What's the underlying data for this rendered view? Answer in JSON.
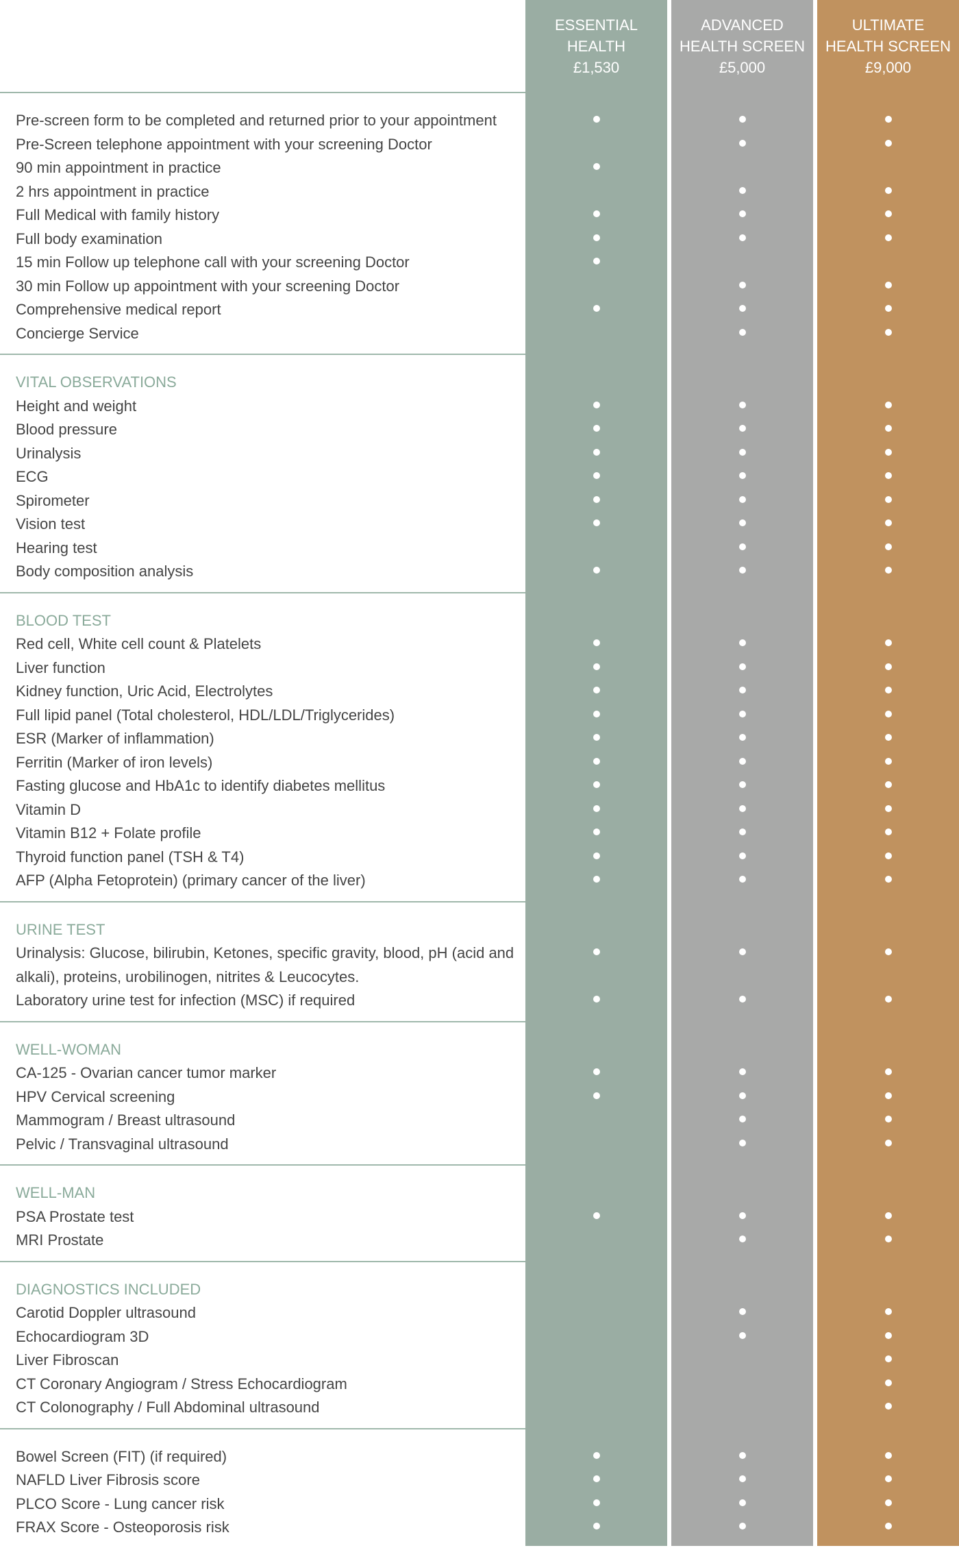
{
  "header": {
    "plans": [
      {
        "name_lines": [
          "ESSENTIAL",
          "HEALTH"
        ],
        "price": "£1,530"
      },
      {
        "name_lines": [
          "ADVANCED",
          "HEALTH SCREEN"
        ],
        "price": "£5,000"
      },
      {
        "name_lines": [
          "ULTIMATE",
          "HEALTH SCREEN"
        ],
        "price": "£9,000"
      }
    ]
  },
  "sections": [
    {
      "rows": [
        {
          "label": "Pre-screen form to be completed and returned prior to your appointment",
          "included": [
            true,
            true,
            true
          ]
        },
        {
          "label": "Pre-Screen telephone appointment with your screening Doctor",
          "included": [
            false,
            true,
            true
          ]
        },
        {
          "label": "90 min appointment in practice",
          "included": [
            true,
            false,
            false
          ]
        },
        {
          "label": "2 hrs appointment in practice",
          "included": [
            false,
            true,
            true
          ]
        },
        {
          "label": "Full Medical with family history",
          "included": [
            true,
            true,
            true
          ]
        },
        {
          "label": "Full body examination",
          "included": [
            true,
            true,
            true
          ]
        },
        {
          "label": "15 min Follow up telephone call with your screening Doctor",
          "included": [
            true,
            false,
            false
          ]
        },
        {
          "label": "30 min Follow up appointment with your screening Doctor",
          "included": [
            false,
            true,
            true
          ]
        },
        {
          "label": "Comprehensive medical report",
          "included": [
            true,
            true,
            true
          ]
        },
        {
          "label": "Concierge Service",
          "included": [
            false,
            true,
            true
          ]
        }
      ]
    },
    {
      "title": "VITAL OBSERVATIONS",
      "rows": [
        {
          "label": "Height and weight",
          "included": [
            true,
            true,
            true
          ]
        },
        {
          "label": "Blood pressure",
          "included": [
            true,
            true,
            true
          ]
        },
        {
          "label": "Urinalysis",
          "included": [
            true,
            true,
            true
          ]
        },
        {
          "label": "ECG",
          "included": [
            true,
            true,
            true
          ]
        },
        {
          "label": "Spirometer",
          "included": [
            true,
            true,
            true
          ]
        },
        {
          "label": "Vision test",
          "included": [
            true,
            true,
            true
          ]
        },
        {
          "label": "Hearing test",
          "included": [
            false,
            true,
            true
          ]
        },
        {
          "label": "Body composition analysis",
          "included": [
            true,
            true,
            true
          ]
        }
      ]
    },
    {
      "title": "BLOOD TEST",
      "rows": [
        {
          "label": "Red cell, White cell count & Platelets",
          "included": [
            true,
            true,
            true
          ]
        },
        {
          "label": "Liver function",
          "included": [
            true,
            true,
            true
          ]
        },
        {
          "label": "Kidney function, Uric Acid, Electrolytes",
          "included": [
            true,
            true,
            true
          ]
        },
        {
          "label": "Full lipid panel (Total cholesterol, HDL/LDL/Triglycerides)",
          "included": [
            true,
            true,
            true
          ]
        },
        {
          "label": "ESR (Marker of inflammation)",
          "included": [
            true,
            true,
            true
          ]
        },
        {
          "label": "Ferritin (Marker of iron levels)",
          "included": [
            true,
            true,
            true
          ]
        },
        {
          "label": "Fasting glucose and HbA1c to identify diabetes mellitus",
          "included": [
            true,
            true,
            true
          ]
        },
        {
          "label": "Vitamin D",
          "included": [
            true,
            true,
            true
          ]
        },
        {
          "label": "Vitamin B12 + Folate profile",
          "included": [
            true,
            true,
            true
          ]
        },
        {
          "label": "Thyroid function panel (TSH & T4)",
          "included": [
            true,
            true,
            true
          ]
        },
        {
          "label": "AFP (Alpha Fetoprotein) (primary cancer of the liver)",
          "included": [
            true,
            true,
            true
          ]
        }
      ]
    },
    {
      "title": "URINE TEST",
      "rows": [
        {
          "label": "Urinalysis: Glucose, bilirubin, Ketones, specific gravity, blood, pH (acid and alkali), proteins, urobilinogen, nitrites & Leucocytes.",
          "included": [
            true,
            true,
            true
          ]
        },
        {
          "label": "Laboratory urine test for infection (MSC) if required",
          "included": [
            true,
            true,
            true
          ]
        }
      ]
    },
    {
      "title": "WELL-WOMAN",
      "rows": [
        {
          "label": "CA-125 - Ovarian cancer tumor marker",
          "included": [
            true,
            true,
            true
          ]
        },
        {
          "label": "HPV Cervical screening",
          "included": [
            true,
            true,
            true
          ]
        },
        {
          "label": "Mammogram / Breast ultrasound",
          "included": [
            false,
            true,
            true
          ]
        },
        {
          "label": "Pelvic / Transvaginal ultrasound",
          "included": [
            false,
            true,
            true
          ]
        }
      ]
    },
    {
      "title": "WELL-MAN",
      "rows": [
        {
          "label": "PSA Prostate test",
          "included": [
            true,
            true,
            true
          ]
        },
        {
          "label": "MRI Prostate",
          "included": [
            false,
            true,
            true
          ]
        }
      ]
    },
    {
      "title": "DIAGNOSTICS INCLUDED",
      "rows": [
        {
          "label": "Carotid Doppler ultrasound",
          "included": [
            false,
            true,
            true
          ]
        },
        {
          "label": "Echocardiogram 3D",
          "included": [
            false,
            true,
            true
          ]
        },
        {
          "label": "Liver Fibroscan",
          "included": [
            false,
            false,
            true
          ]
        },
        {
          "label": "CT Coronary Angiogram / Stress Echocardiogram",
          "included": [
            false,
            false,
            true
          ]
        },
        {
          "label": "CT Colonography / Full Abdominal ultrasound",
          "included": [
            false,
            false,
            true
          ]
        }
      ]
    },
    {
      "rows": [
        {
          "label": "Bowel Screen (FIT) (if required)",
          "included": [
            true,
            true,
            true
          ]
        },
        {
          "label": "NAFLD Liver Fibrosis score",
          "included": [
            true,
            true,
            true
          ]
        },
        {
          "label": "PLCO Score - Lung cancer risk",
          "included": [
            true,
            true,
            true
          ]
        },
        {
          "label": "FRAX Score - Osteoporosis risk",
          "included": [
            true,
            true,
            true
          ]
        }
      ]
    }
  ]
}
